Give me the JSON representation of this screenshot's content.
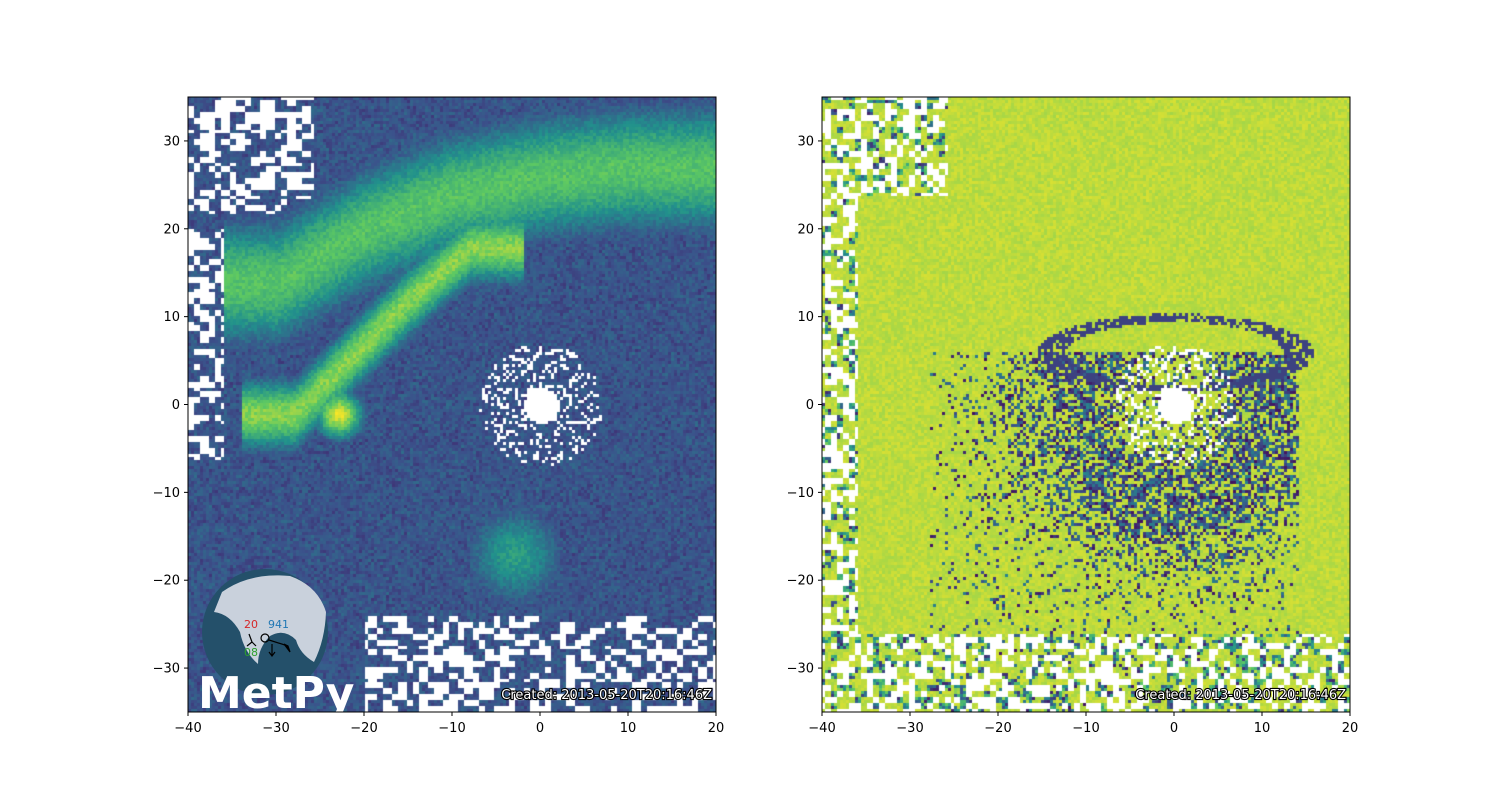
{
  "chart_data": [
    {
      "type": "heatmap",
      "title": "",
      "xlabel": "",
      "ylabel": "",
      "xlim": [
        -40,
        20
      ],
      "ylim": [
        -35,
        35
      ],
      "xticks": [
        -40,
        -30,
        -20,
        -10,
        0,
        10,
        20
      ],
      "yticks": [
        -30,
        -20,
        -10,
        0,
        10,
        20,
        30
      ],
      "xtick_labels": [
        "−40",
        "−30",
        "−20",
        "−10",
        "0",
        "10",
        "20"
      ],
      "ytick_labels": [
        "−30",
        "−20",
        "−10",
        "0",
        "10",
        "20",
        "30"
      ],
      "colormap": "viridis",
      "grid": false,
      "radar_center": [
        0,
        0
      ],
      "blank_radius": 2,
      "echo_features": [
        {
          "kind": "band",
          "x": [
            -30,
            -20,
            -10,
            0,
            10,
            20
          ],
          "y": [
            14,
            20,
            24,
            26,
            27,
            27
          ],
          "half_width": 9,
          "strength": 0.72
        },
        {
          "kind": "band",
          "x": [
            -28,
            -22,
            -15,
            -8
          ],
          "y": [
            -1,
            5,
            12,
            18
          ],
          "half_width": 5,
          "strength": 0.82
        },
        {
          "kind": "hook",
          "cx": -23,
          "cy": -1,
          "r": 3,
          "strength": 0.95
        },
        {
          "kind": "blob",
          "cx": -3,
          "cy": -17,
          "r": 6,
          "strength": 0.55
        }
      ],
      "annotation": "Created: 2013-05-20T20:16:46Z",
      "logo": {
        "text": "MetPy",
        "station_values": {
          "temperature": "20",
          "pressure": "941",
          "dewpoint": "08"
        }
      }
    },
    {
      "type": "heatmap",
      "title": "",
      "xlabel": "",
      "ylabel": "",
      "xlim": [
        -40,
        20
      ],
      "ylim": [
        -35,
        35
      ],
      "xticks": [
        -40,
        -30,
        -20,
        -10,
        0,
        10,
        20
      ],
      "yticks": [
        -30,
        -20,
        -10,
        0,
        10,
        20,
        30
      ],
      "xtick_labels": [
        "−40",
        "−30",
        "−20",
        "−10",
        "0",
        "10",
        "20"
      ],
      "ytick_labels": [
        "−30",
        "−20",
        "−10",
        "0",
        "10",
        "20",
        "30"
      ],
      "colormap": "viridis",
      "grid": false,
      "radar_center": [
        0,
        0
      ],
      "blank_radius": 2,
      "dominant_value": 0.9,
      "ring": {
        "cx": 0,
        "cy": 6,
        "rx": 14,
        "ry": 4,
        "strength": 0.2
      },
      "annotation": "Created: 2013-05-20T20:16:46Z"
    }
  ],
  "colors": {
    "blank": "#ffffff",
    "viridis_low": "#440154",
    "viridis_mid": "#21918c",
    "viridis_high": "#fde725",
    "logo_globe_ocean": "#24506a",
    "logo_globe_land": "#c9d1dc",
    "temperature": "#d62728",
    "pressure": "#1f77b4",
    "dewpoint": "#2ca02c"
  }
}
